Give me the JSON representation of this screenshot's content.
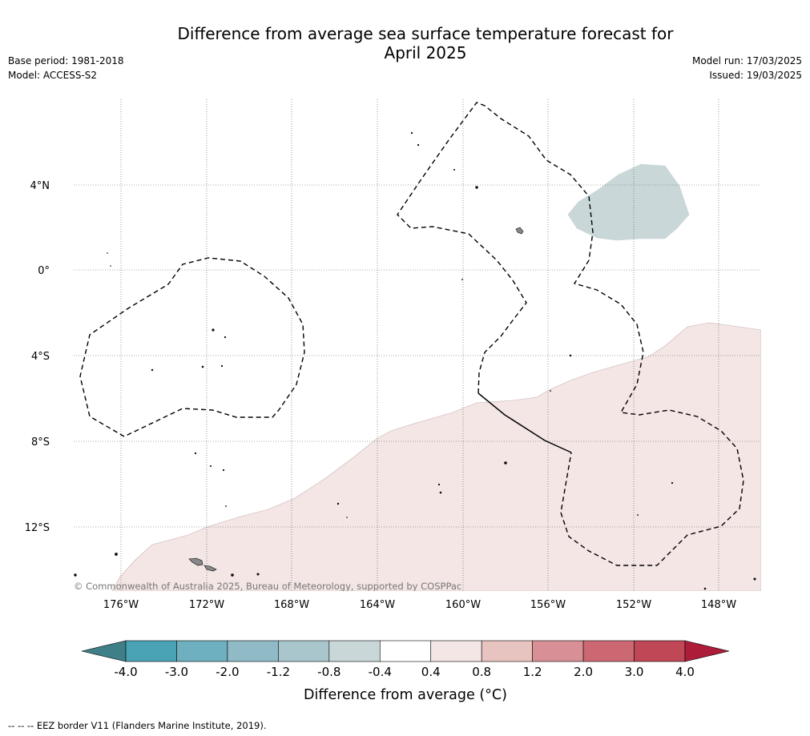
{
  "title_line1": "Difference from average sea surface temperature forecast for",
  "title_line2": "April 2025",
  "base_period": "Base period: 1981-2018",
  "model": "Model: ACCESS-S2",
  "model_run": "Model run: 17/03/2025",
  "issued": "Issued: 19/03/2025",
  "copyright": "© Commonwealth of Australia 2025, Bureau of Meteorology, supported by COSPPac",
  "lat_labels": [
    "4°N",
    "0°",
    "4°S",
    "8°S",
    "12°S"
  ],
  "lon_labels": [
    "176°W",
    "172°W",
    "168°W",
    "164°W",
    "160°W",
    "156°W",
    "152°W",
    "148°W"
  ],
  "colorbar": {
    "ticks": [
      "-4.0",
      "-3.0",
      "-2.0",
      "-1.2",
      "-0.8",
      "-0.4",
      "0.4",
      "0.8",
      "1.2",
      "2.0",
      "3.0",
      "4.0"
    ],
    "colors": [
      "#3f7f87",
      "#4aa3b4",
      "#6eb0bf",
      "#8fbac6",
      "#aac6cd",
      "#c9d7d9",
      "#ffffff",
      "#f3e6e5",
      "#e7c4c0",
      "#d88f95",
      "#cc6872",
      "#c04755",
      "#ad1d3a"
    ],
    "label": "Difference from average (°C)"
  },
  "eez_note": "-- -- -- EEZ border V11 (Flanders Marine Institute, 2019).",
  "anomaly_regions": [
    {
      "category": "-0.8 to -0.4",
      "color": "#c9d7d9"
    },
    {
      "category": "0.4 to 0.8",
      "color": "#f3e6e5"
    }
  ]
}
